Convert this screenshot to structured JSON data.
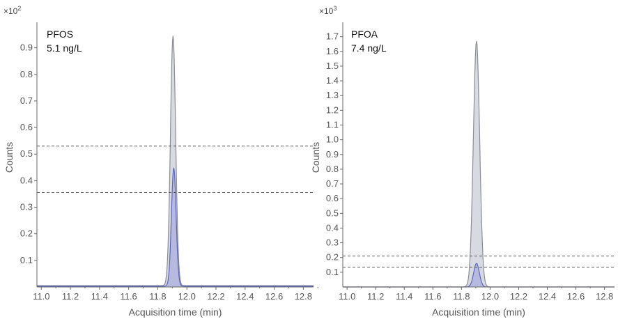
{
  "chart_data": [
    {
      "type": "area",
      "annotation": {
        "compound": "PFOS",
        "concentration": "5.1 ng/L"
      },
      "multiplier": {
        "base": "×10",
        "exp": "2"
      },
      "xlabel": "Acquisition time (min)",
      "ylabel": "Counts",
      "xlim": [
        10.97,
        12.87
      ],
      "ylim": [
        0,
        0.975
      ],
      "xticks": [
        "11.0",
        "11.2",
        "11.4",
        "11.6",
        "11.8",
        "12.0",
        "12.2",
        "12.4",
        "12.6",
        "12.8"
      ],
      "yticks": [
        "0.1",
        "0.2",
        "0.3",
        "0.4",
        "0.5",
        "0.6",
        "0.7",
        "0.8",
        "0.9"
      ],
      "reference_lines_y": [
        0.53,
        0.355
      ],
      "series": [
        {
          "peak": {
            "x": 11.905,
            "y": 0.94,
            "sigma": 0.018
          },
          "baseline": 0.005,
          "fill": "#d4d6de",
          "stroke": "#8a8c96"
        },
        {
          "peak": {
            "x": 11.91,
            "y": 0.445,
            "sigma": 0.016
          },
          "baseline": 0.003,
          "fill": "#b2b6df",
          "stroke": "#5b66c0"
        }
      ],
      "grid": false,
      "legend": "none"
    },
    {
      "type": "area",
      "annotation": {
        "compound": "PFOA",
        "concentration": "7.4 ng/L"
      },
      "multiplier": {
        "base": "×10",
        "exp": "3"
      },
      "xlabel": "Acquisition time (min)",
      "ylabel": "Counts",
      "xlim": [
        10.97,
        12.87
      ],
      "ylim": [
        0,
        1.76
      ],
      "xticks": [
        "11.0",
        "11.2",
        "11.4",
        "11.6",
        "11.8",
        "12.0",
        "12.2",
        "12.4",
        "12.6",
        "12.8"
      ],
      "yticks": [
        "0.1",
        "0.2",
        "0.3",
        "0.4",
        "0.5",
        "0.6",
        "0.7",
        "0.8",
        "0.9",
        "1.0",
        "1.1",
        "1.2",
        "1.3",
        "1.4",
        "1.5",
        "1.6",
        "1.7"
      ],
      "reference_lines_y": [
        0.21,
        0.135
      ],
      "series": [
        {
          "peak": {
            "x": 11.905,
            "y": 1.67,
            "sigma": 0.022
          },
          "baseline": 0.0,
          "fill": "#d4d6de",
          "stroke": "#8a8c96"
        },
        {
          "peak": {
            "x": 11.905,
            "y": 0.16,
            "sigma": 0.02
          },
          "baseline": 0.0,
          "fill": "#b2b6df",
          "stroke": "#5b66c0"
        }
      ],
      "grid": false,
      "legend": "none"
    }
  ],
  "colors": {
    "axis": "#666666",
    "tick_text": "#555555",
    "dashed": "#555555"
  }
}
